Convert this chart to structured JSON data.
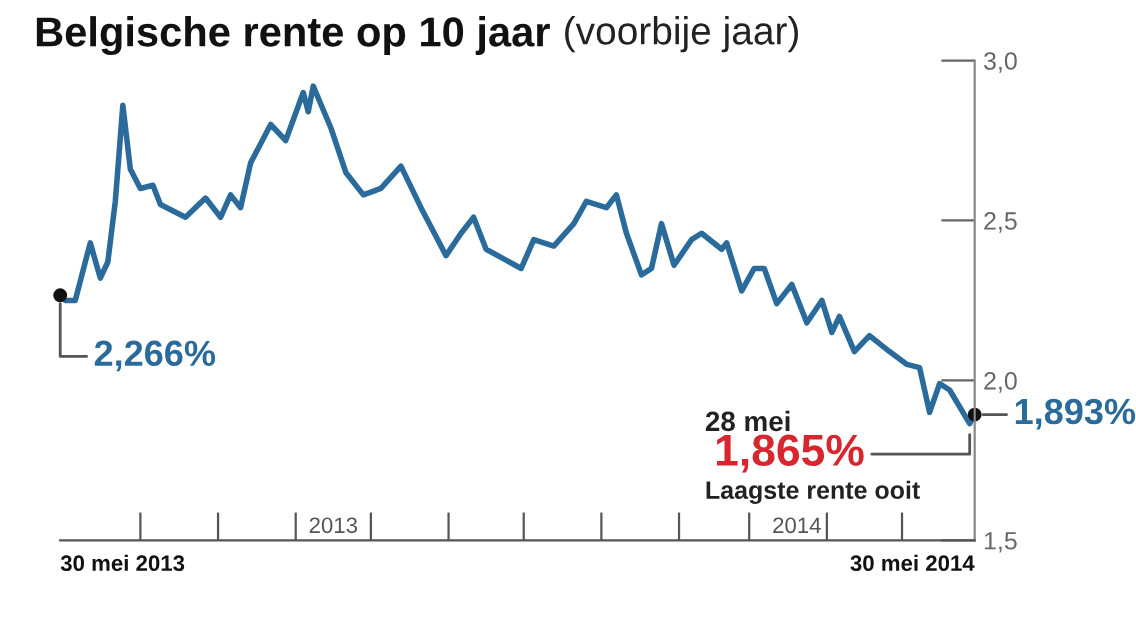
{
  "chart_data": {
    "type": "line",
    "title": "Belgische rente op 10 jaar",
    "subtitle": "(voorbije jaar)",
    "x": [
      "2013-05-30",
      "2013-06-01",
      "2013-06-05",
      "2013-06-11",
      "2013-06-15",
      "2013-06-18",
      "2013-06-21",
      "2013-06-24",
      "2013-06-27",
      "2013-07-01",
      "2013-07-06",
      "2013-07-09",
      "2013-07-19",
      "2013-07-27",
      "2013-08-02",
      "2013-08-06",
      "2013-08-10",
      "2013-08-14",
      "2013-08-18",
      "2013-08-22",
      "2013-08-28",
      "2013-09-04",
      "2013-09-06",
      "2013-09-08",
      "2013-09-15",
      "2013-09-21",
      "2013-09-28",
      "2013-10-05",
      "2013-10-13",
      "2013-10-21",
      "2013-10-31",
      "2013-11-06",
      "2013-11-11",
      "2013-11-16",
      "2013-11-30",
      "2013-12-05",
      "2013-12-13",
      "2013-12-21",
      "2013-12-26",
      "2014-01-03",
      "2014-01-07",
      "2014-01-11",
      "2014-01-17",
      "2014-01-21",
      "2014-01-25",
      "2014-01-30",
      "2014-02-06",
      "2014-02-10",
      "2014-02-18",
      "2014-02-20",
      "2014-02-26",
      "2014-03-03",
      "2014-03-07",
      "2014-03-12",
      "2014-03-18",
      "2014-03-24",
      "2014-03-30",
      "2014-04-03",
      "2014-04-06",
      "2014-04-12",
      "2014-04-18",
      "2014-04-26",
      "2014-05-03",
      "2014-05-08",
      "2014-05-12",
      "2014-05-16",
      "2014-05-20",
      "2014-05-28",
      "2014-05-30"
    ],
    "series": [
      {
        "color": "#2a6b9c",
        "values": [
          2.266,
          2.25,
          2.25,
          2.43,
          2.32,
          2.37,
          2.56,
          2.86,
          2.66,
          2.6,
          2.61,
          2.55,
          2.51,
          2.57,
          2.51,
          2.58,
          2.54,
          2.68,
          2.74,
          2.8,
          2.75,
          2.9,
          2.84,
          2.92,
          2.79,
          2.65,
          2.58,
          2.6,
          2.67,
          2.54,
          2.39,
          2.46,
          2.51,
          2.41,
          2.35,
          2.44,
          2.42,
          2.49,
          2.56,
          2.54,
          2.58,
          2.46,
          2.33,
          2.35,
          2.49,
          2.36,
          2.44,
          2.46,
          2.41,
          2.43,
          2.28,
          2.35,
          2.35,
          2.24,
          2.3,
          2.18,
          2.25,
          2.15,
          2.2,
          2.09,
          2.14,
          2.09,
          2.05,
          2.04,
          1.9,
          1.99,
          1.97,
          1.865,
          1.893
        ]
      }
    ],
    "xlim": [
      "2013-05-30",
      "2014-05-30"
    ],
    "xticks": [
      {
        "value": "2013-07-01",
        "label": null
      },
      {
        "value": "2013-08-01",
        "label": null
      },
      {
        "value": "2013-09-01",
        "label": null
      },
      {
        "value": "2013-09-16",
        "label": "2013"
      },
      {
        "value": "2013-10-01",
        "label": null
      },
      {
        "value": "2013-11-01",
        "label": null
      },
      {
        "value": "2013-12-01",
        "label": null
      },
      {
        "value": "2014-01-01",
        "label": null
      },
      {
        "value": "2014-02-01",
        "label": null
      },
      {
        "value": "2014-03-01",
        "label": null
      },
      {
        "value": "2014-03-20",
        "label": "2014"
      },
      {
        "value": "2014-04-01",
        "label": null
      },
      {
        "value": "2014-05-01",
        "label": null
      }
    ],
    "ylim": [
      1.5,
      3.0
    ],
    "yticks": [
      {
        "value": 1.5,
        "label": "1,5"
      },
      {
        "value": 2.0,
        "label": "2,0"
      },
      {
        "value": 2.5,
        "label": "2,5"
      },
      {
        "value": 3.0,
        "label": "3,0"
      }
    ],
    "grid": false,
    "legend": false,
    "marker": "none",
    "line_style": "solid",
    "annotations": [
      {
        "text": "2,266%",
        "x": "2013-05-30",
        "y": 2.266
      },
      {
        "text": "1,893%",
        "x": "2014-05-30",
        "y": 1.893
      },
      "28 mei",
      {
        "text": "1,865%",
        "x": "2014-05-28",
        "y": 1.865
      },
      "Laagste rente ooit",
      "30 mei 2013",
      "30 mei 2014"
    ]
  }
}
